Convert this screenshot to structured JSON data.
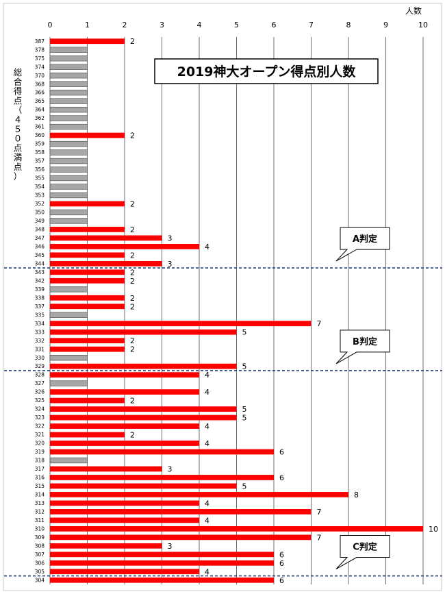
{
  "chart_data": {
    "type": "bar",
    "orientation": "horizontal",
    "title": "2019神大オープン得点別人数",
    "xlabel": "人数",
    "ylabel": "総合得点（４５０点満点）",
    "xlim": [
      0,
      10
    ],
    "x_ticks": [
      0,
      1,
      2,
      3,
      4,
      5,
      6,
      7,
      8,
      9,
      10
    ],
    "grid": true,
    "colors": {
      "count_bar": "#ff0000",
      "placeholder_bar": "#a6a6a6",
      "divider": "#1f3f7a"
    },
    "categories": [
      "387",
      "378",
      "375",
      "374",
      "370",
      "368",
      "366",
      "365",
      "364",
      "362",
      "361",
      "360",
      "359",
      "358",
      "357",
      "356",
      "355",
      "354",
      "353",
      "352",
      "350",
      "349",
      "348",
      "347",
      "346",
      "345",
      "344",
      "343",
      "342",
      "339",
      "338",
      "337",
      "335",
      "334",
      "333",
      "332",
      "331",
      "330",
      "329",
      "328",
      "327",
      "326",
      "325",
      "324",
      "323",
      "322",
      "321",
      "320",
      "319",
      "318",
      "317",
      "316",
      "315",
      "314",
      "313",
      "312",
      "311",
      "310",
      "309",
      "308",
      "307",
      "306",
      "305",
      "304"
    ],
    "series": [
      {
        "values": [
          2,
          1,
          1,
          1,
          1,
          1,
          1,
          1,
          1,
          1,
          1,
          2,
          1,
          1,
          1,
          1,
          1,
          1,
          1,
          2,
          1,
          1,
          2,
          3,
          4,
          2,
          3,
          2,
          2,
          1,
          2,
          2,
          1,
          7,
          5,
          2,
          2,
          1,
          5,
          4,
          1,
          4,
          2,
          5,
          5,
          4,
          2,
          4,
          6,
          1,
          3,
          6,
          5,
          8,
          4,
          7,
          4,
          10,
          7,
          3,
          6,
          6,
          4,
          6
        ]
      }
    ],
    "bar_kind": [
      "count",
      "placeholder",
      "placeholder",
      "placeholder",
      "placeholder",
      "placeholder",
      "placeholder",
      "placeholder",
      "placeholder",
      "placeholder",
      "placeholder",
      "count",
      "placeholder",
      "placeholder",
      "placeholder",
      "placeholder",
      "placeholder",
      "placeholder",
      "placeholder",
      "count",
      "placeholder",
      "placeholder",
      "count",
      "count",
      "count",
      "count",
      "count",
      "count",
      "count",
      "placeholder",
      "count",
      "count",
      "placeholder",
      "count",
      "count",
      "count",
      "count",
      "placeholder",
      "count",
      "count",
      "placeholder",
      "count",
      "count",
      "count",
      "count",
      "count",
      "count",
      "count",
      "count",
      "placeholder",
      "count",
      "count",
      "count",
      "count",
      "count",
      "count",
      "count",
      "count",
      "count",
      "count",
      "count",
      "count",
      "count",
      "count"
    ],
    "annotations": [
      {
        "text": "A判定",
        "after_category": "344"
      },
      {
        "text": "B判定",
        "after_category": "329"
      },
      {
        "text": "C判定",
        "after_category": "305"
      }
    ]
  }
}
